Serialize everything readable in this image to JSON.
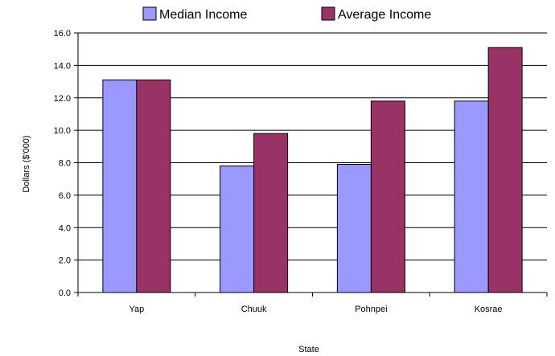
{
  "chart_data": {
    "type": "bar",
    "title": "",
    "xlabel": "State",
    "ylabel": "Dollars ($'000)",
    "categories": [
      "Yap",
      "Chuuk",
      "Pohnpei",
      "Kosrae"
    ],
    "series": [
      {
        "name": "Median Income",
        "values": [
          13.1,
          7.8,
          7.9,
          11.8
        ],
        "color": "#9999ff"
      },
      {
        "name": "Average Income",
        "values": [
          13.1,
          9.8,
          11.8,
          15.1
        ],
        "color": "#993366"
      }
    ],
    "ylim": [
      0,
      16
    ],
    "yticks": [
      "0.0",
      "2.0",
      "4.0",
      "6.0",
      "8.0",
      "10.0",
      "12.0",
      "14.0",
      "16.0"
    ],
    "grid": true,
    "legend_position": "top"
  }
}
